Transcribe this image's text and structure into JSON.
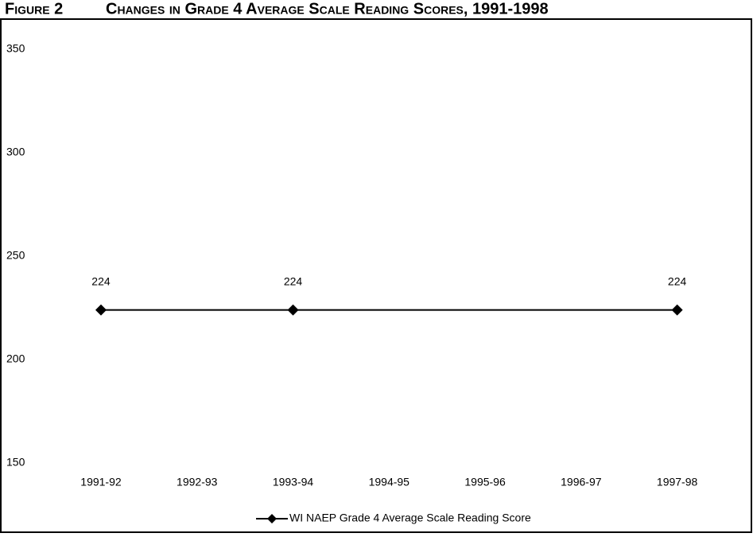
{
  "chart_data": {
    "type": "line",
    "figure_label": "Figure 2",
    "title": "Changes in Grade 4 Average Scale Reading Scores, 1991-1998",
    "categories": [
      "1991-92",
      "1992-93",
      "1993-94",
      "1994-95",
      "1995-96",
      "1996-97",
      "1997-98"
    ],
    "series": [
      {
        "name": "WI NAEP Grade 4 Average Scale Reading Score",
        "color": "#000000",
        "values": [
          224,
          null,
          224,
          null,
          null,
          null,
          224
        ]
      }
    ],
    "connect_gaps": true,
    "ylim": [
      150,
      350
    ],
    "yticks": [
      150,
      200,
      250,
      300,
      350
    ],
    "grid": false,
    "legend": "bottom"
  }
}
